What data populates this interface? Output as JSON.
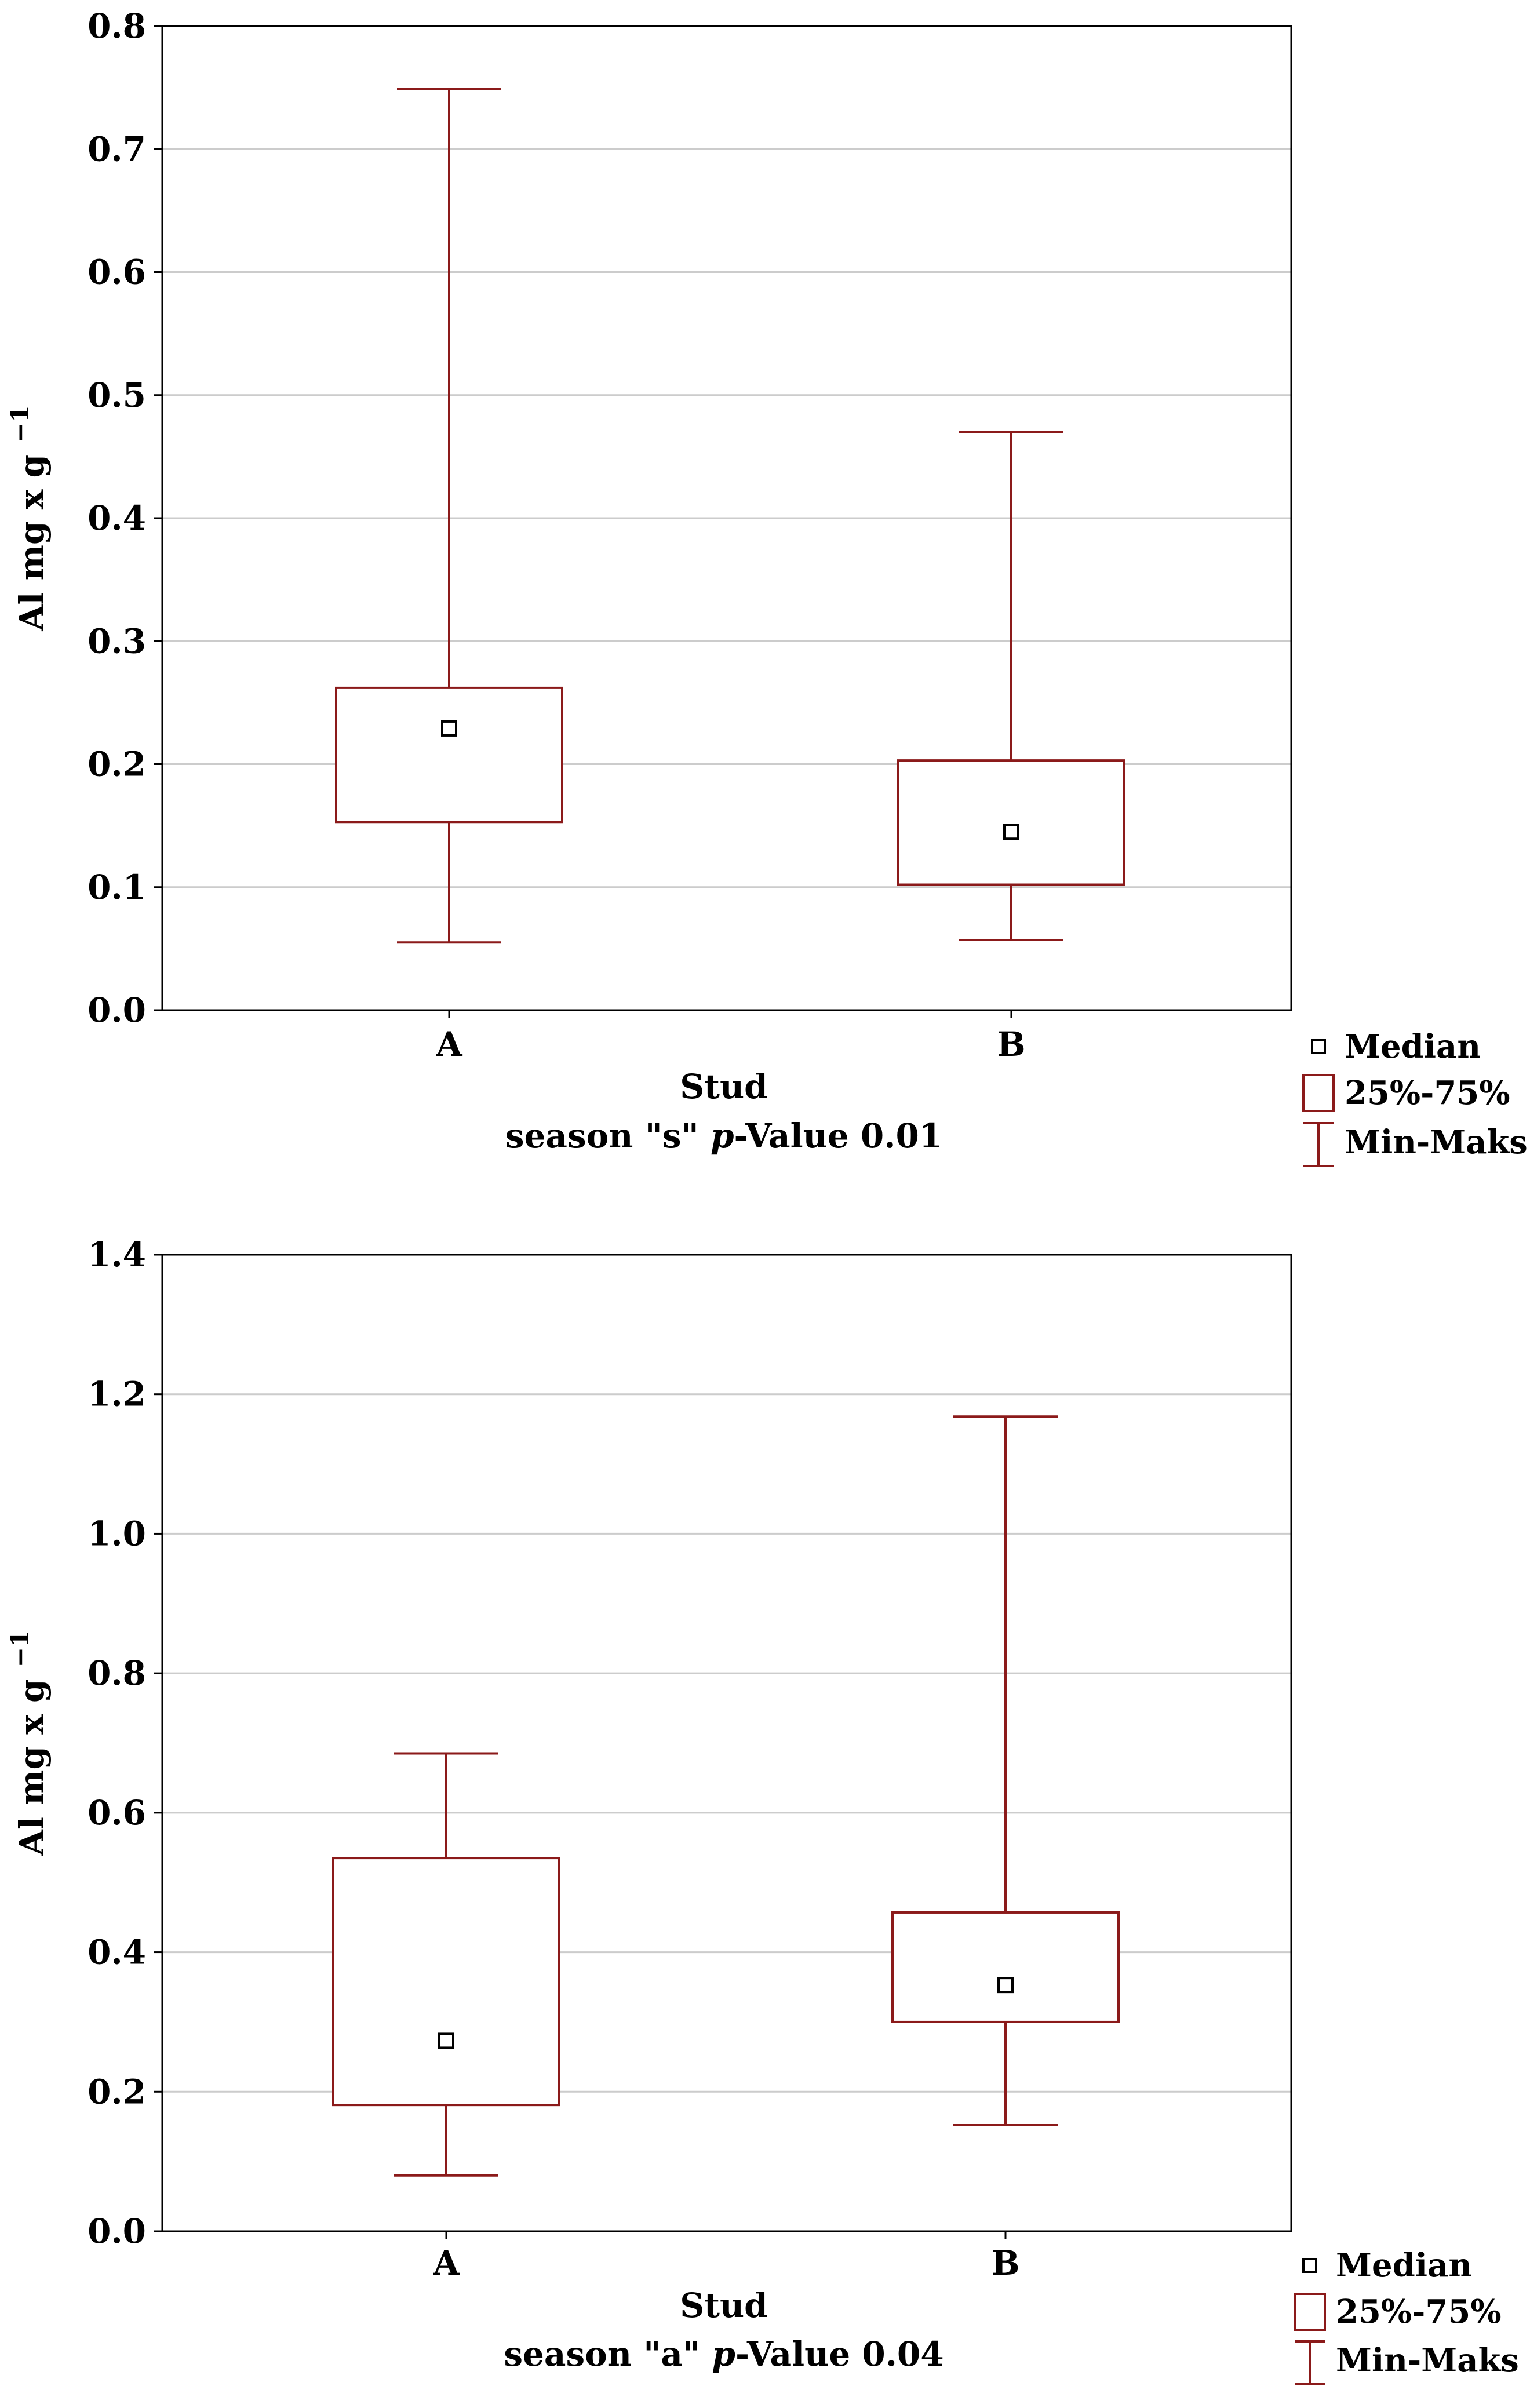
{
  "chart_data": [
    {
      "type": "box",
      "ylabel": "Al mg x g",
      "ylabel_sup": "−1",
      "xlabel": "Stud",
      "subtitle": {
        "prefix": "season \"s\" ",
        "italic": "p",
        "suffix": "-Value 0.01"
      },
      "ylim": [
        0,
        0.8
      ],
      "yticks": [
        0,
        0.1,
        0.2,
        0.3,
        0.4,
        0.5,
        0.6,
        0.7,
        0.8
      ],
      "ytick_labels": [
        "0.0",
        "0.1",
        "0.2",
        "0.3",
        "0.4",
        "0.5",
        "0.6",
        "0.7",
        "0.8"
      ],
      "grid": true,
      "categories": [
        "A",
        "B"
      ],
      "boxes": [
        {
          "category": "A",
          "min": 0.055,
          "q1": 0.153,
          "median": 0.229,
          "q3": 0.262,
          "max": 0.749
        },
        {
          "category": "B",
          "min": 0.057,
          "q1": 0.102,
          "median": 0.145,
          "q3": 0.203,
          "max": 0.47
        }
      ],
      "legend": {
        "position": "bottom-right",
        "median": "Median",
        "box": "25%-75%",
        "whisker": "Min-Maks"
      }
    },
    {
      "type": "box",
      "ylabel": "Al mg x g",
      "ylabel_sup": "−1",
      "xlabel": "Stud",
      "subtitle": {
        "prefix": "season \"a\" ",
        "italic": "p",
        "suffix": "-Value 0.04"
      },
      "ylim": [
        0,
        1.4
      ],
      "yticks": [
        0,
        0.2,
        0.4,
        0.6,
        0.8,
        1.0,
        1.2,
        1.4
      ],
      "ytick_labels": [
        "0.0",
        "0.2",
        "0.4",
        "0.6",
        "0.8",
        "1.0",
        "1.2",
        "1.4"
      ],
      "grid": true,
      "categories": [
        "A",
        "B"
      ],
      "boxes": [
        {
          "category": "A",
          "min": 0.08,
          "q1": 0.181,
          "median": 0.273,
          "q3": 0.535,
          "max": 0.685
        },
        {
          "category": "B",
          "min": 0.152,
          "q1": 0.3,
          "median": 0.353,
          "q3": 0.457,
          "max": 1.168
        }
      ],
      "legend": {
        "position": "bottom-right",
        "median": "Median",
        "box": "25%-75%",
        "whisker": "Min-Maks"
      }
    }
  ],
  "colors": {
    "box": "#8b1a1a",
    "grid": "#cccccc",
    "axis": "#000000",
    "median_marker": "#000000"
  }
}
